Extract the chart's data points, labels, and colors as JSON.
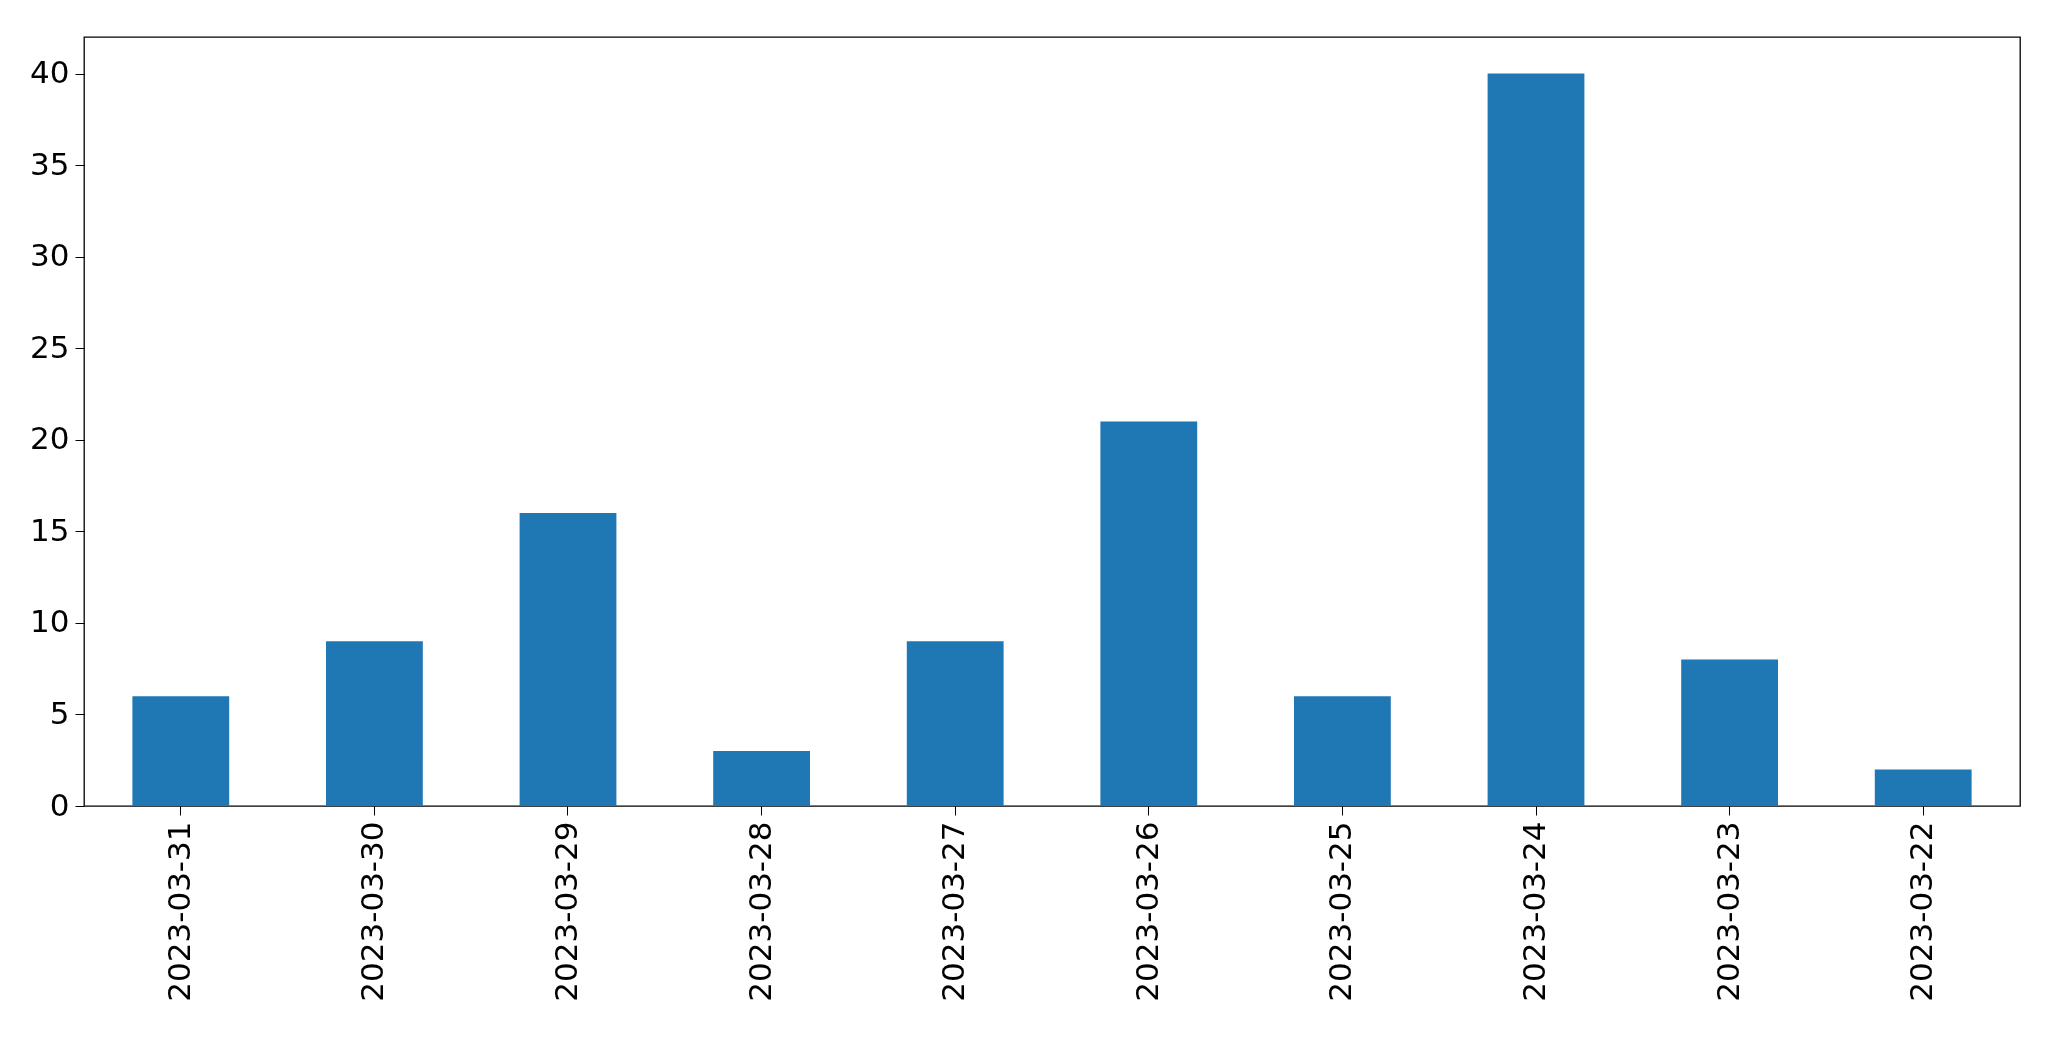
{
  "chart_data": {
    "type": "bar",
    "categories": [
      "2023-03-31",
      "2023-03-30",
      "2023-03-29",
      "2023-03-28",
      "2023-03-27",
      "2023-03-26",
      "2023-03-25",
      "2023-03-24",
      "2023-03-23",
      "2023-03-22"
    ],
    "values": [
      6,
      9,
      16,
      3,
      9,
      21,
      6,
      40,
      8,
      2
    ],
    "color": "#1f77b4",
    "ylim": [
      0,
      42
    ],
    "yticks": [
      0,
      5,
      10,
      15,
      20,
      25,
      30,
      35,
      40
    ],
    "grid": false
  }
}
